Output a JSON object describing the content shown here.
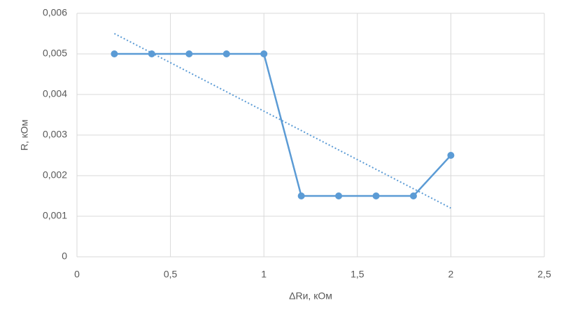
{
  "chart_data": {
    "type": "scatter",
    "x_label": "ΔRи, кОм",
    "y_label": "R, кОм",
    "xlim": [
      0,
      2.5
    ],
    "xticks": [
      0,
      {
        "value": 0.5,
        "label": "0,5"
      },
      1,
      {
        "value": 1.5,
        "label": "1,5"
      },
      2,
      {
        "value": 2.5,
        "label": "2,5"
      }
    ],
    "ylim": [
      0,
      0.006
    ],
    "yticks": [
      0,
      {
        "value": 0.001,
        "label": "0,001"
      },
      {
        "value": 0.002,
        "label": "0,002"
      },
      {
        "value": 0.003,
        "label": "0,003"
      },
      {
        "value": 0.004,
        "label": "0,004"
      },
      {
        "value": 0.005,
        "label": "0,005"
      },
      {
        "value": 0.006,
        "label": "0,006"
      }
    ],
    "grid": true,
    "series": [
      {
        "color": "#5b9bd5",
        "style": "line-markers",
        "x": [
          0.2,
          0.4,
          0.6,
          0.8,
          1,
          1.2,
          1.4,
          1.6,
          1.8,
          2
        ],
        "values": [
          0.005,
          0.005,
          0.005,
          0.005,
          0.005,
          0.0015,
          0.0015,
          0.0015,
          0.0015,
          0.0025
        ]
      },
      {
        "color": "#5b9bd5",
        "style": "dotted-trendline",
        "x": [
          0.2,
          2
        ],
        "values": [
          0.0055,
          0.0012
        ]
      }
    ]
  }
}
